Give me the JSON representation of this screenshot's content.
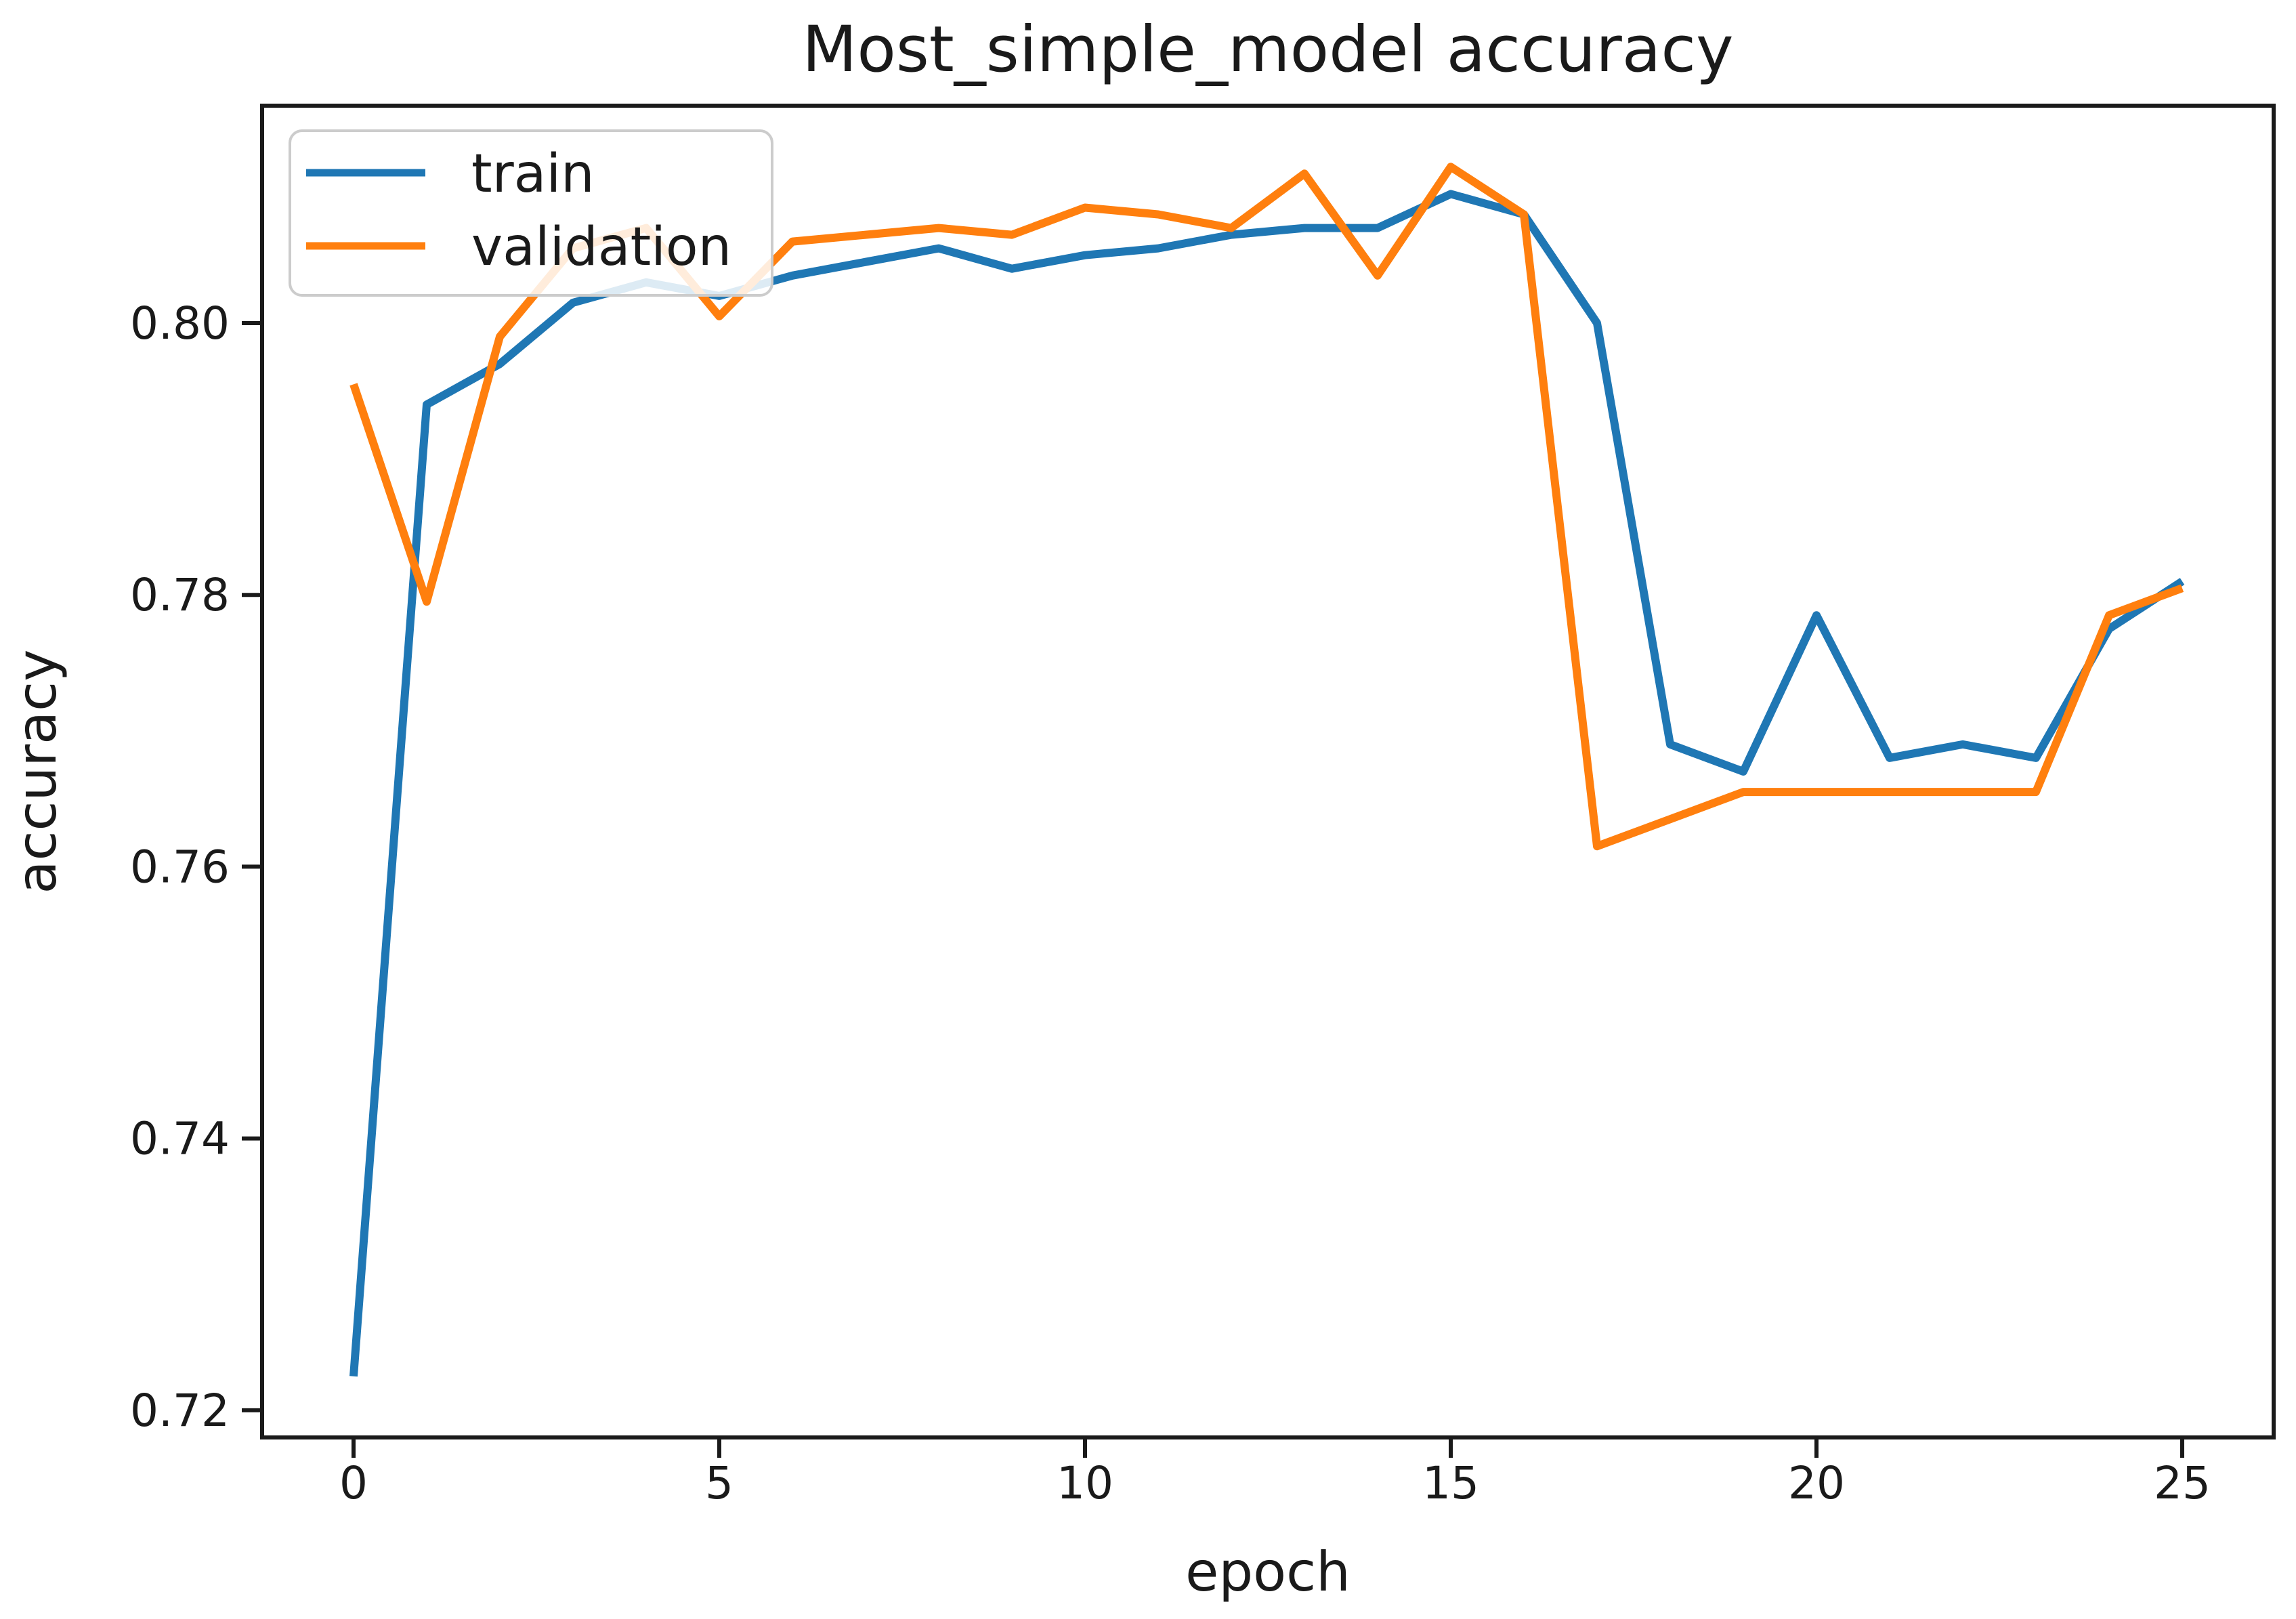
{
  "chart_data": {
    "type": "line",
    "title": "Most_simple_model accuracy",
    "xlabel": "epoch",
    "ylabel": "accuracy",
    "x": [
      0,
      1,
      2,
      3,
      4,
      5,
      6,
      7,
      8,
      9,
      10,
      11,
      12,
      13,
      14,
      15,
      16,
      17,
      18,
      19,
      20,
      21,
      22,
      23,
      24,
      25
    ],
    "series": [
      {
        "name": "train",
        "color": "#1f77b4",
        "values": [
          0.7225,
          0.794,
          0.797,
          0.8015,
          0.803,
          0.802,
          0.8035,
          0.8045,
          0.8055,
          0.804,
          0.805,
          0.8055,
          0.8065,
          0.807,
          0.807,
          0.8095,
          0.808,
          0.8,
          0.769,
          0.767,
          0.7785,
          0.768,
          0.769,
          0.768,
          0.7775,
          0.781
        ]
      },
      {
        "name": "validation",
        "color": "#ff7f0e",
        "values": [
          0.7955,
          0.7795,
          0.799,
          0.8055,
          0.807,
          0.8005,
          0.806,
          0.8065,
          0.807,
          0.8065,
          0.8085,
          0.808,
          0.807,
          0.811,
          0.8035,
          0.8115,
          0.808,
          0.7615,
          0.7635,
          0.7655,
          0.7655,
          0.7655,
          0.7655,
          0.7655,
          0.7785,
          0.7805
        ]
      }
    ],
    "xticks": [
      0,
      5,
      10,
      15,
      20,
      25
    ],
    "xtick_labels": [
      "0",
      "5",
      "10",
      "15",
      "20",
      "25"
    ],
    "yticks": [
      0.72,
      0.74,
      0.76,
      0.78,
      0.8
    ],
    "ytick_labels": [
      "0.72",
      "0.74",
      "0.76",
      "0.78",
      "0.80"
    ],
    "xlim": [
      -1.25,
      26.25
    ],
    "ylim": [
      0.718,
      0.816
    ],
    "grid": false,
    "legend_position": "upper left",
    "background_color": "#ffffff",
    "spine_color": "#1a1a1a",
    "legend_border_color": "#cccccc"
  }
}
